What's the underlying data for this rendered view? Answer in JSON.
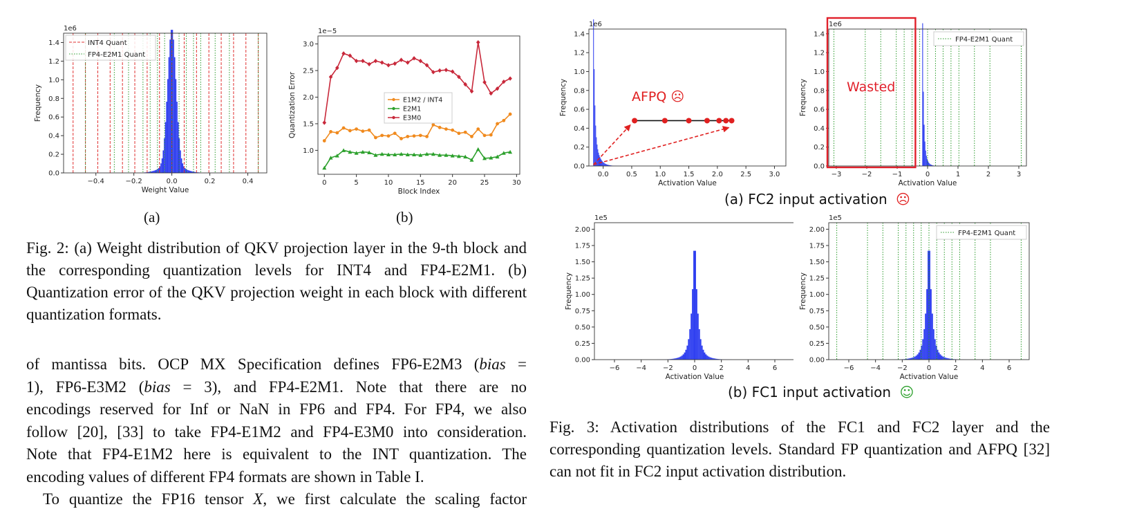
{
  "colors": {
    "hist": "#2f3ff0",
    "int4": "#e03030",
    "fp4": "#2a9a2a",
    "e1m2": "#f08a1e",
    "e2m1": "#2ca02c",
    "e3m0": "#c8283a",
    "afpq": "#e02020",
    "wasted": "#e0202a",
    "smile": "#2ca02c"
  },
  "fig2": {
    "panel_a": {
      "chart_data": {
        "type": "histogram",
        "xlabel": "Weight Value",
        "ylabel": "Frequency",
        "exponent": "1e6",
        "xlim": [
          -0.57,
          0.5
        ],
        "ylim": [
          0,
          1.5
        ],
        "xticks": [
          -0.4,
          -0.2,
          0.0,
          0.2,
          0.4
        ],
        "xtick_labels": [
          "−0.4",
          "−0.2",
          "0.0",
          "0.2",
          "0.4"
        ],
        "yticks": [
          0,
          0.2,
          0.4,
          0.6,
          0.8,
          1.0,
          1.2,
          1.4
        ],
        "ytick_labels": [
          "0.0",
          "0.2",
          "0.4",
          "0.6",
          "0.8",
          "1.0",
          "1.2",
          "1.4"
        ],
        "legend": [
          "INT4 Quant",
          "FP4-E2M1 Quant"
        ],
        "int4_levels": [
          -0.52,
          -0.455,
          -0.39,
          -0.325,
          -0.26,
          -0.195,
          -0.13,
          -0.065,
          0,
          0.065,
          0.13,
          0.195,
          0.26,
          0.325,
          0.39,
          0.455
        ],
        "fp4_levels": [
          -0.455,
          -0.303,
          -0.228,
          -0.152,
          -0.114,
          -0.076,
          -0.038,
          0,
          0.038,
          0.076,
          0.114,
          0.152,
          0.228,
          0.303,
          0.455
        ],
        "hist_peak": 1.47,
        "hist_sigma": 0.022
      },
      "label": "(a)"
    },
    "panel_b": {
      "chart_data": {
        "type": "line",
        "xlabel": "Block Index",
        "ylabel": "Quantization Error",
        "exponent": "1e−5",
        "xlim": [
          -1,
          30.5
        ],
        "ylim": [
          0.55,
          3.15
        ],
        "xticks": [
          0,
          5,
          10,
          15,
          20,
          25,
          30
        ],
        "xtick_labels": [
          "0",
          "5",
          "10",
          "15",
          "20",
          "25",
          "30"
        ],
        "yticks": [
          1.0,
          1.5,
          2.0,
          2.5,
          3.0
        ],
        "ytick_labels": [
          "1.0",
          "1.5",
          "2.0",
          "2.5",
          "3.0"
        ],
        "x": [
          0,
          1,
          2,
          3,
          4,
          5,
          6,
          7,
          8,
          9,
          10,
          11,
          12,
          13,
          14,
          15,
          16,
          17,
          18,
          19,
          20,
          21,
          22,
          23,
          24,
          25,
          26,
          27,
          28,
          29
        ],
        "series": [
          {
            "name": "E1M2 / INT4",
            "values": [
              1.18,
              1.35,
              1.33,
              1.42,
              1.37,
              1.4,
              1.36,
              1.38,
              1.24,
              1.28,
              1.27,
              1.32,
              1.22,
              1.26,
              1.27,
              1.28,
              1.26,
              1.48,
              1.43,
              1.4,
              1.38,
              1.32,
              1.34,
              1.26,
              1.4,
              1.28,
              1.29,
              1.5,
              1.56,
              1.68
            ]
          },
          {
            "name": "E2M1",
            "values": [
              0.67,
              0.86,
              0.9,
              1.0,
              0.97,
              0.95,
              0.97,
              0.96,
              0.91,
              0.93,
              0.92,
              0.92,
              0.93,
              0.92,
              0.92,
              0.91,
              0.93,
              0.93,
              0.91,
              0.91,
              0.9,
              0.89,
              0.88,
              0.82,
              1.02,
              0.85,
              0.86,
              0.88,
              0.95,
              0.97
            ]
          },
          {
            "name": "E3M0",
            "values": [
              1.52,
              2.38,
              2.55,
              2.82,
              2.78,
              2.68,
              2.68,
              2.62,
              2.68,
              2.65,
              2.6,
              2.63,
              2.7,
              2.65,
              2.73,
              2.68,
              2.6,
              2.47,
              2.5,
              2.51,
              2.48,
              2.38,
              2.24,
              2.11,
              3.03,
              2.28,
              2.07,
              2.16,
              2.29,
              2.35
            ]
          }
        ]
      },
      "label": "(b)"
    },
    "caption": "Fig. 2: (a) Weight distribution of QKV projection layer in the 9-th block and the corresponding quantization levels for INT4 and FP4-E2M1. (b) Quantization error of the QKV projection weight in each block with different quantization formats."
  },
  "fig3": {
    "fc2_left": {
      "chart_data": {
        "type": "histogram",
        "xlabel": "Activation Value",
        "ylabel": "Frequency",
        "exponent": "1e6",
        "xlim": [
          -0.25,
          3.2
        ],
        "ylim": [
          0,
          1.45
        ],
        "xticks": [
          0.0,
          0.5,
          1.0,
          1.5,
          2.0,
          2.5,
          3.0
        ],
        "xtick_labels": [
          "0.0",
          "0.5",
          "1.0",
          "1.5",
          "2.0",
          "2.5",
          "3.0"
        ],
        "yticks": [
          0,
          0.2,
          0.4,
          0.6,
          0.8,
          1.0,
          1.2,
          1.4
        ],
        "ytick_labels": [
          "0.0",
          "0.2",
          "0.4",
          "0.6",
          "0.8",
          "1.0",
          "1.2",
          "1.4"
        ],
        "afpq_points": [
          0.55,
          1.08,
          1.5,
          1.82,
          2.03,
          2.15,
          2.25
        ],
        "afpq_level": 0.48
      },
      "annotation": "AFPQ ☹"
    },
    "fc2_right": {
      "chart_data": {
        "type": "histogram",
        "xlabel": "Activation Value",
        "exponent": "1e6",
        "xlim": [
          -3.25,
          3.25
        ],
        "ylim": [
          0,
          1.45
        ],
        "xticks": [
          -3,
          -2,
          -1,
          0,
          1,
          2,
          3
        ],
        "xtick_labels": [
          "−3",
          "−2",
          "−1",
          "0",
          "1",
          "2",
          "3"
        ],
        "yticks": [
          0,
          0.2,
          0.4,
          0.6,
          0.8,
          1.0,
          1.2,
          1.4
        ],
        "ytick_labels": [
          "0.0",
          "0.2",
          "0.4",
          "0.6",
          "0.8",
          "1.0",
          "1.2",
          "1.4"
        ],
        "legend": [
          "FP4-E2M1 Quant"
        ],
        "fp4_levels": [
          -3.08,
          -2.05,
          -1.54,
          -1.03,
          -0.77,
          -0.51,
          -0.26,
          0,
          0.26,
          0.51,
          0.77,
          1.03,
          1.54,
          2.05,
          3.08
        ]
      },
      "annotation": "Wasted"
    },
    "fc2_label": "(a) FC2 input activation",
    "fc2_face": "☹",
    "fc1_left": {
      "chart_data": {
        "type": "histogram",
        "xlabel": "Activation Value",
        "ylabel": "Frequency",
        "exponent": "1e5",
        "xlim": [
          -7.5,
          7.5
        ],
        "ylim": [
          0,
          2.1
        ],
        "xticks": [
          -6,
          -4,
          -2,
          0,
          2,
          4,
          6
        ],
        "xtick_labels": [
          "−6",
          "−4",
          "−2",
          "0",
          "2",
          "4",
          "6"
        ],
        "yticks": [
          0,
          0.25,
          0.5,
          0.75,
          1.0,
          1.25,
          1.5,
          1.75,
          2.0
        ],
        "ytick_labels": [
          "0.00",
          "0.25",
          "0.50",
          "0.75",
          "1.00",
          "1.25",
          "1.50",
          "1.75",
          "2.00"
        ]
      }
    },
    "fc1_right": {
      "chart_data": {
        "type": "histogram",
        "xlabel": "Activation Value",
        "exponent": "1e5",
        "xlim": [
          -7.5,
          7.5
        ],
        "ylim": [
          0,
          2.1
        ],
        "xticks": [
          -6,
          -4,
          -2,
          0,
          2,
          4,
          6
        ],
        "xtick_labels": [
          "−6",
          "−4",
          "−2",
          "0",
          "2",
          "4",
          "6"
        ],
        "yticks": [
          0,
          0.25,
          0.5,
          0.75,
          1.0,
          1.25,
          1.5,
          1.75,
          2.0
        ],
        "ytick_labels": [
          "0.00",
          "0.25",
          "0.50",
          "0.75",
          "1.00",
          "1.25",
          "1.50",
          "1.75",
          "2.00"
        ],
        "legend": [
          "FP4-E2M1 Quant"
        ],
        "fp4_levels": [
          -6.9,
          -4.6,
          -3.45,
          -2.3,
          -1.72,
          -1.15,
          -0.58,
          0,
          0.58,
          1.15,
          1.72,
          2.3,
          3.45,
          4.6,
          6.9
        ]
      }
    },
    "fc1_label": "(b) FC1 input activation",
    "fc1_face": "☺",
    "caption": "Fig. 3: Activation distributions of the FC1 and FC2 layer and the corresponding quantization levels. Standard FP quantization and AFPQ [32] can not fit in FC2 input activation distribution."
  },
  "body_text": {
    "lines": [
      "of mantissa bits. OCP MX Specification defines FP6-E2M3 (bias =",
      "1), FP6-E3M2 (bias = 3), and FP4-E2M1. Note that there are no",
      "encodings reserved for Inf or NaN in FP6 and FP4. For FP4, we also",
      "follow [20], [33] to take FP4-E1M2 and FP4-E3M0 into consideration.",
      "Note that FP4-E1M2 here is equivalent to the INT quantization. The",
      "encoding values of different FP4 formats are shown in Table I."
    ],
    "last_line": "To quantize the FP16 tensor X, we first calculate the scaling factor"
  }
}
